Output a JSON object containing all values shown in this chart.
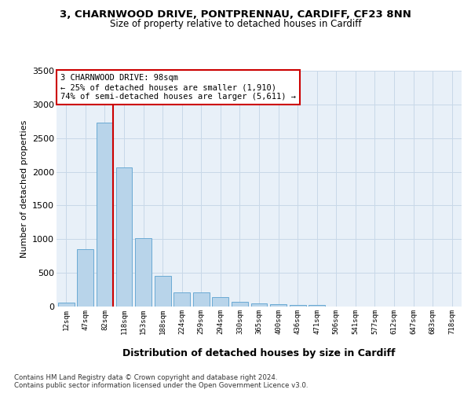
{
  "title_line1": "3, CHARNWOOD DRIVE, PONTPRENNAU, CARDIFF, CF23 8NN",
  "title_line2": "Size of property relative to detached houses in Cardiff",
  "xlabel": "Distribution of detached houses by size in Cardiff",
  "ylabel": "Number of detached properties",
  "bin_labels": [
    "12sqm",
    "47sqm",
    "82sqm",
    "118sqm",
    "153sqm",
    "188sqm",
    "224sqm",
    "259sqm",
    "294sqm",
    "330sqm",
    "365sqm",
    "400sqm",
    "436sqm",
    "471sqm",
    "506sqm",
    "541sqm",
    "577sqm",
    "612sqm",
    "647sqm",
    "683sqm",
    "718sqm"
  ],
  "bar_values": [
    60,
    850,
    2730,
    2060,
    1010,
    455,
    205,
    205,
    135,
    65,
    45,
    30,
    20,
    20,
    5,
    3,
    2,
    1,
    1,
    0,
    0
  ],
  "bar_color": "#b8d4ea",
  "bar_edge_color": "#6aaad4",
  "vline_color": "#cc0000",
  "annotation_text": "3 CHARNWOOD DRIVE: 98sqm\n← 25% of detached houses are smaller (1,910)\n74% of semi-detached houses are larger (5,611) →",
  "annotation_box_color": "#ffffff",
  "annotation_box_edge": "#cc0000",
  "ylim": [
    0,
    3500
  ],
  "yticks": [
    0,
    500,
    1000,
    1500,
    2000,
    2500,
    3000,
    3500
  ],
  "grid_color": "#c8d8e8",
  "background_color": "#e8f0f8",
  "footer_line1": "Contains HM Land Registry data © Crown copyright and database right 2024.",
  "footer_line2": "Contains public sector information licensed under the Open Government Licence v3.0."
}
